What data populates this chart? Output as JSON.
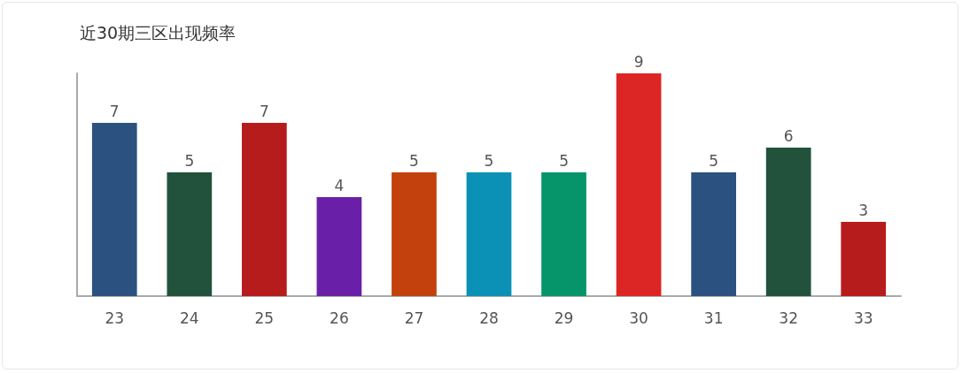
{
  "chart_data": {
    "type": "bar",
    "title": "近30期三区出现频率",
    "categories": [
      "23",
      "24",
      "25",
      "26",
      "27",
      "28",
      "29",
      "30",
      "31",
      "32",
      "33"
    ],
    "values": [
      7,
      5,
      7,
      4,
      5,
      5,
      5,
      9,
      5,
      6,
      3
    ],
    "colors": [
      "#2b5181",
      "#22523c",
      "#b71c1c",
      "#6a1fa8",
      "#c2410c",
      "#0a91b5",
      "#06956a",
      "#dc2626",
      "#2b5181",
      "#22523c",
      "#b71c1c"
    ],
    "data_labels": true,
    "tick_labels": "x"
  }
}
